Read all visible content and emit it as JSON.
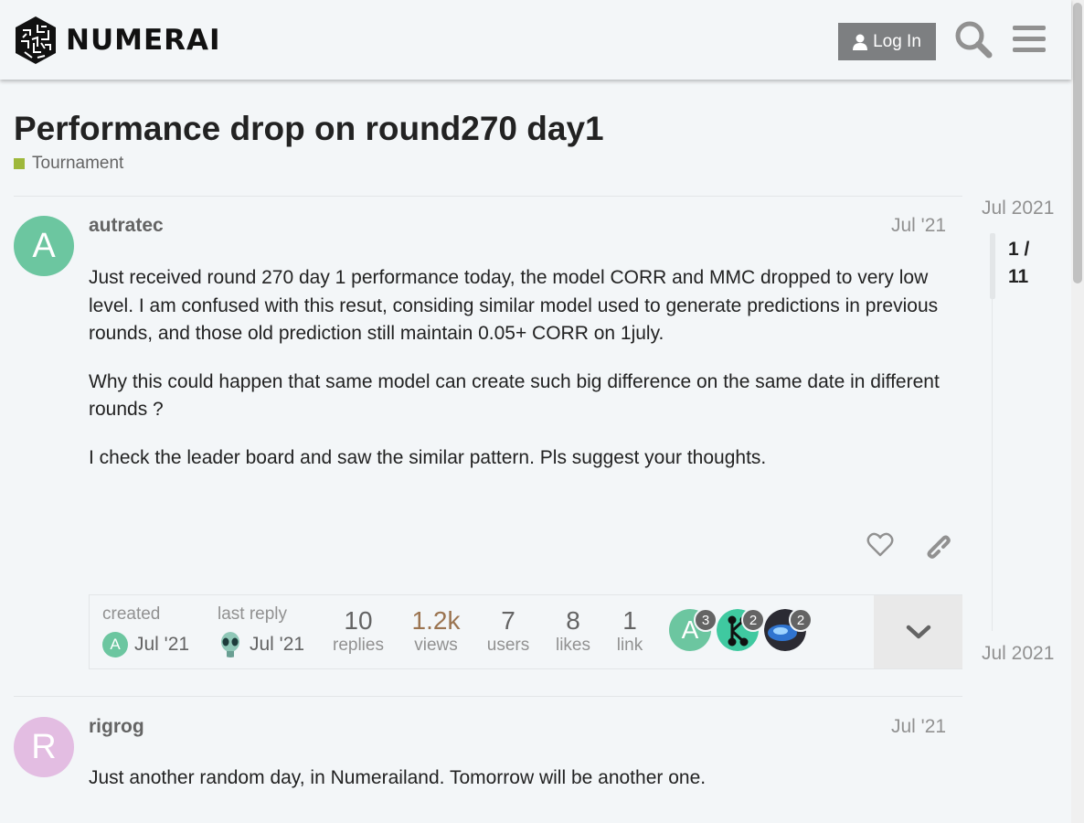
{
  "header": {
    "logo_text": "NUMERAI",
    "login_label": "Log In",
    "icons": [
      "user-icon",
      "search-icon",
      "hamburger-menu-icon"
    ]
  },
  "topic": {
    "title": "Performance drop on round270 day1",
    "category": "Tournament",
    "category_color": "#9eb83b"
  },
  "timeline": {
    "start_date": "Jul 2021",
    "position": "1 /",
    "total": "11",
    "end_date": "Jul 2021"
  },
  "posts": [
    {
      "avatar_letter": "A",
      "avatar_color": "#6cc6a0",
      "username": "autratec",
      "date": "Jul '21",
      "paragraphs": [
        "Just received round 270 day 1 performance today, the model CORR and MMC dropped to very low level. I am confused with this resut, considing similar model used to generate predictions in previous rounds, and those old prediction still maintain 0.05+ CORR on 1july.",
        "Why this could happen that same model can create such big difference on the same date in different rounds ?",
        "I check the leader board and saw the similar pattern. Pls suggest your thoughts."
      ]
    },
    {
      "avatar_letter": "R",
      "avatar_color": "#e3bde2",
      "username": "rigrog",
      "date": "Jul '21",
      "paragraphs": [
        "Just another random day, in Numerailand. Tomorrow will be another one."
      ]
    }
  ],
  "topic_map": {
    "created_label": "created",
    "created_date": "Jul '21",
    "created_avatar_letter": "A",
    "last_reply_label": "last reply",
    "last_reply_date": "Jul '21",
    "stats": [
      {
        "num": "10",
        "label": "replies"
      },
      {
        "num": "1.2k",
        "label": "views"
      },
      {
        "num": "7",
        "label": "users"
      },
      {
        "num": "8",
        "label": "likes"
      },
      {
        "num": "1",
        "label": "link"
      }
    ],
    "views_color": "#9b7450",
    "participants": [
      {
        "letter": "A",
        "count": "3",
        "color": "#6cc6a0"
      },
      {
        "letter": "",
        "count": "2",
        "color": "#3fc9a0"
      },
      {
        "letter": "",
        "count": "2",
        "color": "#3a5d8a"
      }
    ]
  }
}
